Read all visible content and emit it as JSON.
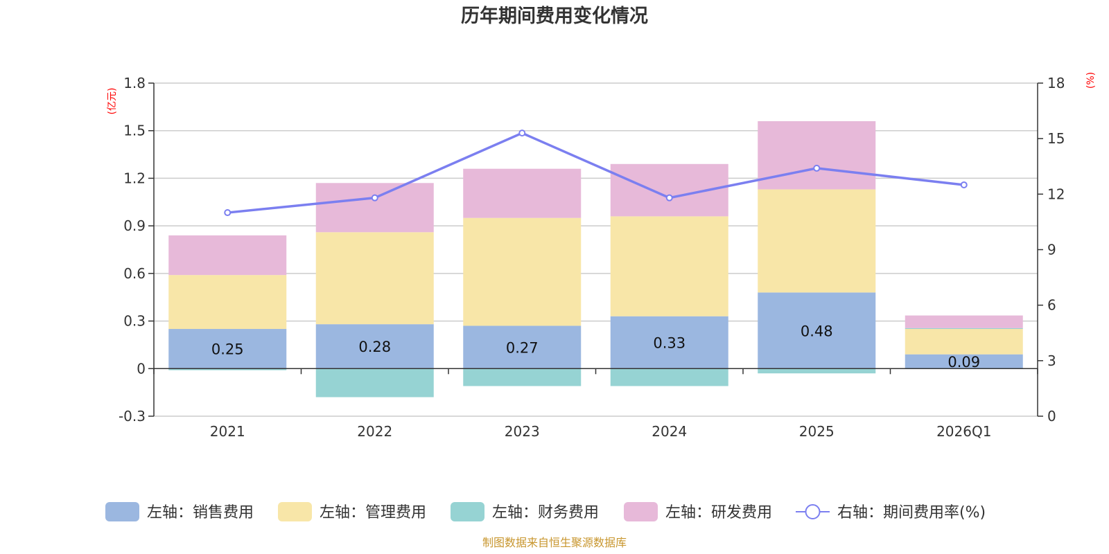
{
  "chart_data": {
    "type": "bar",
    "subtype": "stacked-bar-with-line",
    "title": "历年期间费用变化情况",
    "categories": [
      "2021",
      "2022",
      "2023",
      "2024",
      "2025",
      "2026Q1"
    ],
    "left_axis": {
      "unit_label": "(亿元)",
      "ylim": [
        -0.3,
        1.8
      ],
      "ticks": [
        "1.8",
        "1.5",
        "1.2",
        "0.9",
        "0.6",
        "0.3",
        "0",
        "-0.3"
      ],
      "tick_values": [
        1.8,
        1.5,
        1.2,
        0.9,
        0.6,
        0.3,
        0,
        -0.3
      ]
    },
    "right_axis": {
      "unit_label": "(%)",
      "ylim": [
        0,
        18
      ],
      "ticks": [
        "18",
        "15",
        "12",
        "9",
        "6",
        "3",
        "0"
      ],
      "tick_values": [
        18,
        15,
        12,
        9,
        6,
        3,
        0
      ]
    },
    "grid": true,
    "legend_position": "bottom",
    "series": [
      {
        "name": "左轴：销售费用",
        "axis": "left",
        "type": "bar",
        "color": "#9bb7e0",
        "values": [
          0.25,
          0.28,
          0.27,
          0.33,
          0.48,
          0.09
        ],
        "labels": [
          "0.25",
          "0.28",
          "0.27",
          "0.33",
          "0.48",
          "0.09"
        ]
      },
      {
        "name": "左轴：管理费用",
        "axis": "left",
        "type": "bar",
        "color": "#f8e6a8",
        "values": [
          0.34,
          0.58,
          0.68,
          0.63,
          0.65,
          0.16
        ]
      },
      {
        "name": "左轴：财务费用",
        "axis": "left",
        "type": "bar",
        "color": "#96d3d3",
        "values": [
          -0.01,
          -0.18,
          -0.11,
          -0.11,
          -0.03,
          0.005
        ]
      },
      {
        "name": "左轴：研发费用",
        "axis": "left",
        "type": "bar",
        "color": "#e7b9d9",
        "values": [
          0.25,
          0.31,
          0.31,
          0.33,
          0.43,
          0.08
        ]
      },
      {
        "name": "右轴：期间费用率(%)",
        "axis": "right",
        "type": "line",
        "color": "#7b7ff0",
        "values": [
          11.0,
          11.8,
          15.3,
          11.8,
          13.4,
          12.5
        ]
      }
    ],
    "source": "制图数据来自恒生聚源数据库"
  }
}
